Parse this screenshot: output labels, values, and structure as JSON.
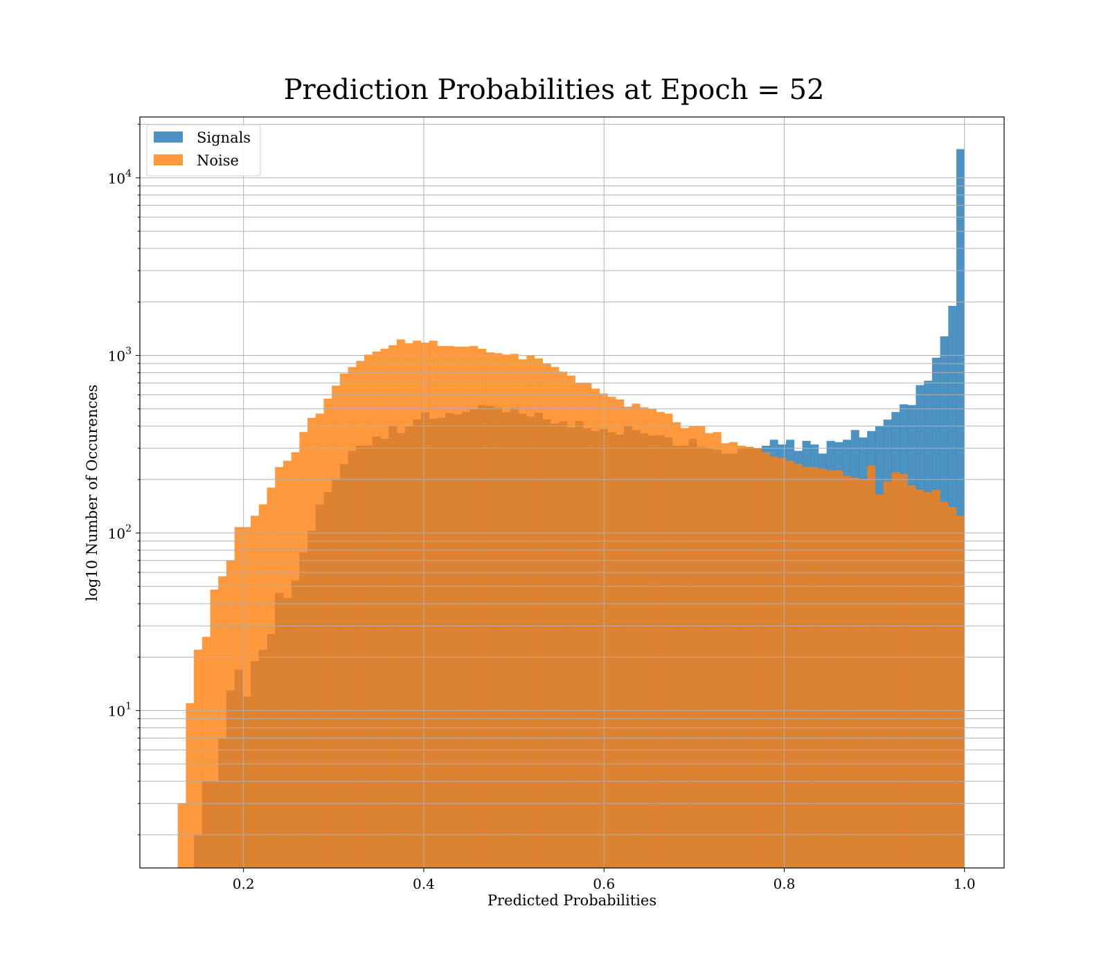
{
  "chart_data": {
    "type": "bar",
    "title": "Prediction Probabilities at Epoch = 52",
    "xlabel": "Predicted Probabilities",
    "ylabel": "log10 Number of Occurences",
    "xlim": [
      0.085,
      1.044
    ],
    "ylim": [
      1.3,
      22000
    ],
    "yscale": "log",
    "grid": true,
    "legend_position": "top-left",
    "xticks": [
      "0.2",
      "0.4",
      "0.6",
      "0.8",
      "1.0"
    ],
    "yticks": [
      {
        "base": "10",
        "exp": "1"
      },
      {
        "base": "10",
        "exp": "2"
      },
      {
        "base": "10",
        "exp": "3"
      },
      {
        "base": "10",
        "exp": "4"
      }
    ],
    "bin_edges_range": [
      0.127,
      1.0
    ],
    "series": [
      {
        "name": "Signals",
        "color": "#1f77b4",
        "values": [
          0,
          0,
          2,
          4,
          4,
          7,
          13,
          17,
          12,
          19,
          22,
          27,
          46,
          43,
          54,
          78,
          103,
          145,
          170,
          200,
          244,
          290,
          310,
          312,
          349,
          339,
          401,
          366,
          399,
          436,
          478,
          439,
          446,
          473,
          466,
          481,
          500,
          525,
          519,
          508,
          478,
          506,
          470,
          453,
          475,
          436,
          413,
          426,
          393,
          427,
          389,
          375,
          385,
          369,
          358,
          402,
          380,
          365,
          354,
          355,
          345,
          310,
          310,
          339,
          305,
          300,
          295,
          280,
          280,
          300,
          305,
          300,
          310,
          335,
          315,
          335,
          290,
          330,
          315,
          280,
          330,
          325,
          335,
          380,
          345,
          375,
          400,
          435,
          480,
          530,
          525,
          680,
          720,
          970,
          1280,
          1900,
          14500
        ]
      },
      {
        "name": "Noise",
        "color": "#ff7f0e",
        "values": [
          3,
          11,
          22,
          26,
          48,
          57,
          70,
          108,
          108,
          125,
          145,
          180,
          235,
          255,
          285,
          370,
          445,
          470,
          570,
          675,
          790,
          860,
          930,
          1010,
          1050,
          1090,
          1140,
          1230,
          1170,
          1210,
          1180,
          1210,
          1130,
          1130,
          1120,
          1120,
          1130,
          1090,
          1040,
          1030,
          1010,
          1020,
          950,
          1000,
          960,
          900,
          860,
          810,
          770,
          700,
          700,
          650,
          610,
          585,
          565,
          515,
          535,
          510,
          500,
          480,
          470,
          420,
          390,
          400,
          400,
          365,
          370,
          320,
          325,
          310,
          305,
          300,
          285,
          270,
          265,
          255,
          245,
          235,
          235,
          230,
          225,
          225,
          210,
          205,
          200,
          240,
          165,
          195,
          220,
          215,
          185,
          175,
          170,
          175,
          150,
          140,
          125
        ]
      }
    ]
  }
}
